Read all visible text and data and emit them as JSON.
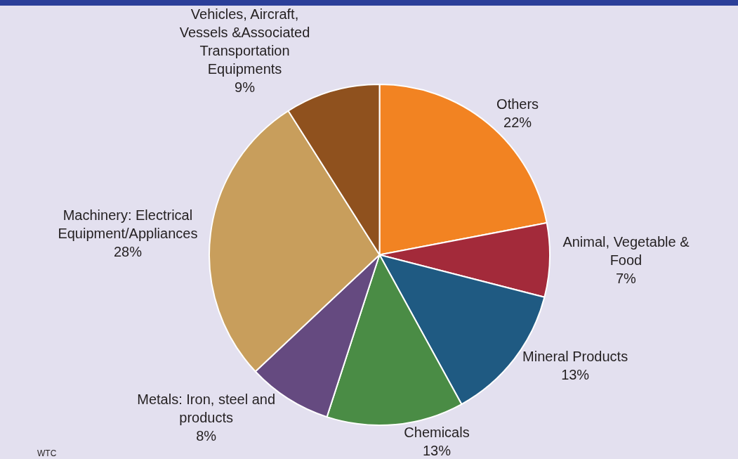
{
  "chart_data": {
    "type": "pie",
    "categories": [
      "Others",
      "Animal, Vegetable & Food",
      "Mineral Products",
      "Chemicals",
      "Metals: Iron, steel and products",
      "Machinery: Electrical Equipment/Appliances",
      "Vehicles, Aircraft, Vessels &Associated Transportation Equipments"
    ],
    "values": [
      22,
      7,
      13,
      13,
      8,
      28,
      9
    ],
    "value_labels": [
      "22%",
      "7%",
      "13%",
      "13%",
      "8%",
      "28%",
      "9%"
    ],
    "colors": [
      "#f28322",
      "#a32a3a",
      "#1f5a82",
      "#4a8c45",
      "#654a80",
      "#c89e5c",
      "#8f511e"
    ],
    "annotations": [
      "WTC"
    ],
    "legend": false
  }
}
